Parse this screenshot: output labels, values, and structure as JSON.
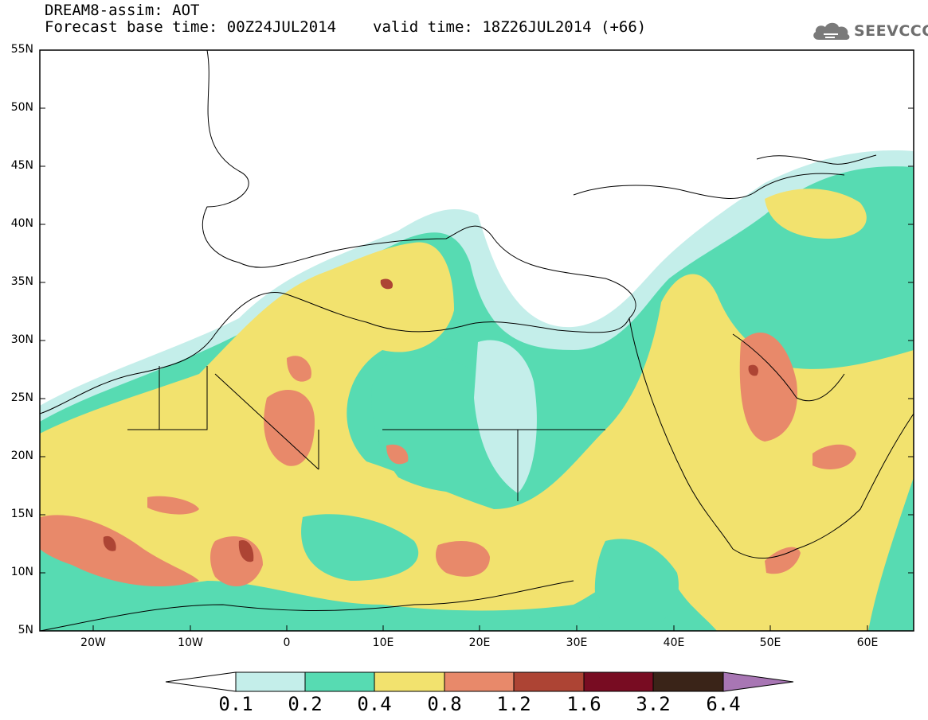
{
  "header": {
    "title": "DREAM8-assim: AOT",
    "base_time_label": "Forecast base time: 00Z24JUL2014",
    "valid_time_label": "valid time: 18Z26JUL2014 (+66)"
  },
  "logo": {
    "text": "SEEVCCC",
    "icon": "cloud-icon"
  },
  "map": {
    "lat_ticks": [
      "55N",
      "50N",
      "45N",
      "40N",
      "35N",
      "30N",
      "25N",
      "20N",
      "15N",
      "10N",
      "5N"
    ],
    "lon_ticks": [
      "20W",
      "10W",
      "0",
      "10E",
      "20E",
      "30E",
      "40E",
      "50E",
      "60E"
    ],
    "lat_range": [
      5,
      55
    ],
    "lon_range": [
      -25,
      65
    ],
    "variable": "AOT"
  },
  "colorbar": {
    "thresholds": [
      "0.1",
      "0.2",
      "0.4",
      "0.8",
      "1.2",
      "1.6",
      "3.2",
      "6.4"
    ],
    "colors": [
      "#c4eeea",
      "#57dbb2",
      "#f2e26e",
      "#e8896a",
      "#ad4434",
      "#780c22",
      "#3a2418",
      "#a876b4"
    ],
    "low_color": "#ffffff"
  }
}
